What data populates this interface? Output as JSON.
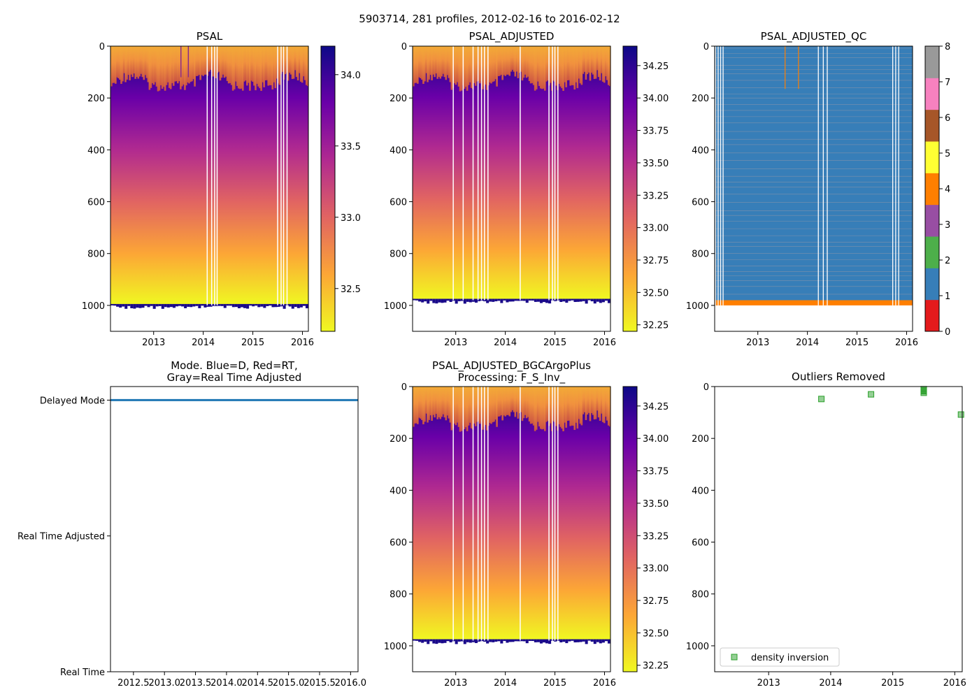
{
  "suptitle": "5903714, 281 profiles, 2012-02-16 to 2016-02-12",
  "colors": {
    "plasma_stops": [
      "#f0f921",
      "#fca636",
      "#e16462",
      "#b12a90",
      "#6a00a8",
      "#0d0887"
    ],
    "qc_classes": [
      "#e41a1c",
      "#377eb8",
      "#4daf4a",
      "#984ea3",
      "#ff7f00",
      "#ffff33",
      "#a65628",
      "#f781bf",
      "#999999"
    ],
    "mode_line": "#1f77b4",
    "outlier_marker": "#2ca02c"
  },
  "chart_data": [
    {
      "id": "psal",
      "type": "heatmap",
      "title": "PSAL",
      "xlim": [
        2012.13,
        2016.12
      ],
      "ylim": [
        1100,
        0
      ],
      "xticks": [
        2013,
        2014,
        2015,
        2016
      ],
      "yticks": [
        0,
        200,
        400,
        600,
        800,
        1000
      ],
      "max_depth": 1000,
      "surface_layer_depth": [
        130,
        175
      ],
      "gap_years": [
        2014.08,
        2014.17,
        2014.23,
        2014.28,
        2015.5,
        2015.57,
        2015.62,
        2015.69
      ],
      "spike_years": [
        2013.55,
        2013.7
      ],
      "colorbar": {
        "vmin": 32.2,
        "vmax": 34.2,
        "ticks": [
          "32.5",
          "33.0",
          "33.5",
          "34.0"
        ],
        "tick_values": [
          32.5,
          33.0,
          33.5,
          34.0
        ]
      }
    },
    {
      "id": "psal_adj",
      "type": "heatmap",
      "title": "PSAL_ADJUSTED",
      "xlim": [
        2012.13,
        2016.12
      ],
      "ylim": [
        1100,
        0
      ],
      "xticks": [
        2013,
        2014,
        2015,
        2016
      ],
      "yticks": [
        0,
        200,
        400,
        600,
        800,
        1000
      ],
      "max_depth": 980,
      "surface_layer_depth": [
        130,
        175
      ],
      "gap_years": [
        2012.95,
        2013.15,
        2013.35,
        2013.45,
        2013.52,
        2013.58,
        2013.65,
        2014.3,
        2014.88,
        2014.95,
        2015.0,
        2015.06
      ],
      "colorbar": {
        "vmin": 32.2,
        "vmax": 34.4,
        "ticks": [
          "32.25",
          "32.50",
          "32.75",
          "33.00",
          "33.25",
          "33.50",
          "33.75",
          "34.00",
          "34.25"
        ],
        "tick_values": [
          32.25,
          32.5,
          32.75,
          33.0,
          33.25,
          33.5,
          33.75,
          34.0,
          34.25
        ]
      }
    },
    {
      "id": "psal_adj_qc",
      "type": "heatmap",
      "title": "PSAL_ADJUSTED_QC",
      "xlim": [
        2012.13,
        2016.12
      ],
      "ylim": [
        1100,
        0
      ],
      "xticks": [
        2013,
        2014,
        2015,
        2016
      ],
      "yticks": [
        0,
        200,
        400,
        600,
        800,
        1000
      ],
      "colorbar": {
        "ticks": [
          "0",
          "1",
          "2",
          "3",
          "4",
          "5",
          "6",
          "7",
          "8"
        ]
      }
    },
    {
      "id": "mode",
      "type": "line",
      "title_lines": [
        "Mode. Blue=D, Red=RT,",
        "Gray=Real Time Adjusted"
      ],
      "xlim": [
        2012.13,
        2016.12
      ],
      "xticks": [
        "2012.5",
        "2013.0",
        "2013.5",
        "2014.0",
        "2014.5",
        "2015.0",
        "2015.5",
        "2016.0"
      ],
      "xtick_values": [
        2012.5,
        2013.0,
        2013.5,
        2014.0,
        2014.5,
        2015.0,
        2015.5,
        2016.0
      ],
      "ylim": [
        0,
        2.1
      ],
      "ytick_labels": [
        "Real Time",
        "Real Time Adjusted",
        "Delayed Mode"
      ],
      "ytick_values": [
        0,
        1,
        2
      ],
      "series": [
        {
          "name": "mode",
          "x": [
            2012.13,
            2016.12
          ],
          "y": [
            2,
            2
          ]
        }
      ]
    },
    {
      "id": "psal_bgc",
      "type": "heatmap",
      "title_lines": [
        "PSAL_ADJUSTED_BGCArgoPlus",
        "Processing: F_S_Inv_"
      ],
      "xlim": [
        2012.13,
        2016.12
      ],
      "ylim": [
        1100,
        0
      ],
      "xticks": [
        2013,
        2014,
        2015,
        2016
      ],
      "yticks": [
        0,
        200,
        400,
        600,
        800,
        1000
      ],
      "max_depth": 980,
      "surface_layer_depth": [
        130,
        175
      ],
      "gap_years": [
        2012.95,
        2013.15,
        2013.35,
        2013.45,
        2013.52,
        2013.58,
        2013.65,
        2014.3,
        2014.88,
        2014.95,
        2015.0,
        2015.06
      ],
      "colorbar": {
        "vmin": 32.2,
        "vmax": 34.4,
        "ticks": [
          "32.25",
          "32.50",
          "32.75",
          "33.00",
          "33.25",
          "33.50",
          "33.75",
          "34.00",
          "34.25"
        ],
        "tick_values": [
          32.25,
          32.5,
          32.75,
          33.0,
          33.25,
          33.5,
          33.75,
          34.0,
          34.25
        ]
      }
    },
    {
      "id": "outliers",
      "type": "scatter",
      "title": "Outliers Removed",
      "xlim": [
        2012.13,
        2016.12
      ],
      "ylim": [
        1100,
        0
      ],
      "xticks": [
        2013,
        2014,
        2015,
        2016
      ],
      "yticks": [
        0,
        200,
        400,
        600,
        800,
        1000
      ],
      "legend": {
        "location": "lower-left",
        "entries": [
          "density inversion"
        ]
      },
      "series": [
        {
          "name": "density inversion",
          "x": [
            2013.85,
            2014.65,
            2015.5,
            2015.5,
            2015.5,
            2015.5,
            2016.1
          ],
          "y": [
            48,
            30,
            10,
            15,
            18,
            24,
            108
          ]
        }
      ]
    }
  ]
}
